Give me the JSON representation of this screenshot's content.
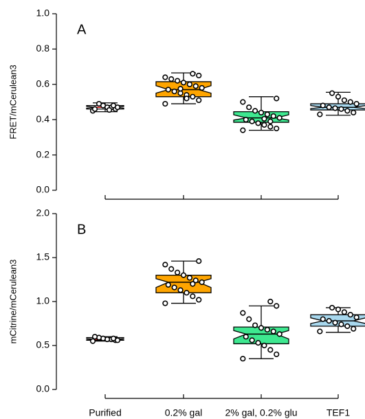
{
  "chart_data": [
    {
      "type": "box",
      "panel_label": "A",
      "ylabel": "FRET/mCerulean3",
      "ylim": [
        0,
        1
      ],
      "yticks": [
        {
          "value": 0,
          "label": "0.0"
        },
        0.2,
        0.4,
        0.6,
        0.8,
        {
          "value": 1,
          "label": "1.0"
        }
      ],
      "boxes": [
        {
          "min": 0.445,
          "q1": 0.46,
          "median": 0.47,
          "q3": 0.48,
          "max": 0.495,
          "color": "#ffffff",
          "median_color": "#cc0000",
          "points": [
            0.45,
            0.46,
            0.47,
            0.47,
            0.48,
            0.49,
            0.46,
            0.47,
            0.48,
            0.455
          ]
        },
        {
          "min": 0.49,
          "q1": 0.53,
          "median": 0.57,
          "q3": 0.615,
          "max": 0.665,
          "color": "#ffa500",
          "median_color": "#000000",
          "points": [
            0.49,
            0.51,
            0.53,
            0.54,
            0.55,
            0.56,
            0.57,
            0.58,
            0.59,
            0.6,
            0.61,
            0.62,
            0.63,
            0.64,
            0.65,
            0.66,
            0.52,
            0.575
          ]
        },
        {
          "min": 0.34,
          "q1": 0.385,
          "median": 0.41,
          "q3": 0.445,
          "max": 0.53,
          "color": "#3ee890",
          "median_color": "#000000",
          "points": [
            0.34,
            0.35,
            0.36,
            0.37,
            0.38,
            0.39,
            0.4,
            0.41,
            0.42,
            0.43,
            0.44,
            0.45,
            0.47,
            0.5,
            0.52,
            0.39,
            0.405
          ]
        },
        {
          "min": 0.425,
          "q1": 0.455,
          "median": 0.47,
          "q3": 0.49,
          "max": 0.555,
          "color": "#a8d8ee",
          "median_color": "#000000",
          "points": [
            0.43,
            0.44,
            0.45,
            0.46,
            0.465,
            0.47,
            0.48,
            0.49,
            0.5,
            0.51,
            0.53,
            0.55
          ]
        }
      ]
    },
    {
      "type": "box",
      "panel_label": "B",
      "ylabel": "mCitrine/mCerulean3",
      "ylim": [
        0,
        2
      ],
      "yticks": [
        {
          "value": 0,
          "label": "0.0"
        },
        0.5,
        {
          "value": 1,
          "label": "1.0"
        },
        1.5,
        {
          "value": 2,
          "label": "2.0"
        }
      ],
      "categories": [
        "Purified",
        "0.2% gal",
        "2% gal, 0.2% glu",
        "TEF1"
      ],
      "boxes": [
        {
          "min": 0.55,
          "q1": 0.56,
          "median": 0.57,
          "q3": 0.59,
          "max": 0.6,
          "color": "#ffffff",
          "median_color": "#cc0000",
          "points": [
            0.55,
            0.56,
            0.57,
            0.57,
            0.58,
            0.59,
            0.6,
            0.56,
            0.58
          ]
        },
        {
          "min": 0.98,
          "q1": 1.1,
          "median": 1.22,
          "q3": 1.3,
          "max": 1.46,
          "color": "#ffa500",
          "median_color": "#000000",
          "points": [
            0.98,
            1.02,
            1.06,
            1.1,
            1.13,
            1.16,
            1.19,
            1.22,
            1.24,
            1.27,
            1.3,
            1.33,
            1.37,
            1.42,
            1.46,
            1.2
          ]
        },
        {
          "min": 0.35,
          "q1": 0.52,
          "median": 0.63,
          "q3": 0.71,
          "max": 0.95,
          "color": "#3ee890",
          "median_color": "#000000",
          "points": [
            0.35,
            0.4,
            0.45,
            0.5,
            0.53,
            0.56,
            0.6,
            0.63,
            0.66,
            0.68,
            0.7,
            0.73,
            0.8,
            0.87,
            0.95,
            1.0
          ]
        },
        {
          "min": 0.65,
          "q1": 0.72,
          "median": 0.78,
          "q3": 0.85,
          "max": 0.93,
          "color": "#a8d8ee",
          "median_color": "#000000",
          "points": [
            0.66,
            0.69,
            0.72,
            0.74,
            0.76,
            0.78,
            0.8,
            0.82,
            0.85,
            0.88,
            0.91,
            0.93
          ]
        }
      ]
    }
  ]
}
